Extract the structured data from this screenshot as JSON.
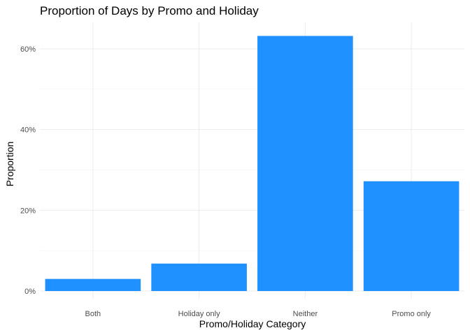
{
  "chart_data": {
    "type": "bar",
    "title": "Proportion of Days by Promo and Holiday",
    "xlabel": "Promo/Holiday Category",
    "ylabel": "Proportion",
    "categories": [
      "Both",
      "Holiday only",
      "Neither",
      "Promo only"
    ],
    "values": [
      0.03,
      0.068,
      0.632,
      0.272
    ],
    "ylim": [
      0,
      0.66
    ],
    "yticks": [
      0,
      0.2,
      0.4,
      0.6
    ],
    "ytick_labels": [
      "0%",
      "20%",
      "40%",
      "60%"
    ],
    "bar_color": "#1E90FF",
    "grid": true,
    "legend": "none"
  }
}
